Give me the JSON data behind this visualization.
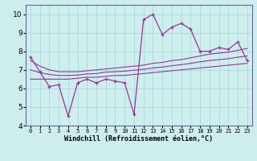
{
  "x": [
    0,
    1,
    2,
    3,
    4,
    5,
    6,
    7,
    8,
    9,
    10,
    11,
    12,
    13,
    14,
    15,
    16,
    17,
    18,
    19,
    20,
    21,
    22,
    23
  ],
  "y_main": [
    7.7,
    6.9,
    6.1,
    6.2,
    4.5,
    6.3,
    6.5,
    6.3,
    6.5,
    6.4,
    6.3,
    4.6,
    9.7,
    10.0,
    8.9,
    9.3,
    9.5,
    9.2,
    8.0,
    8.0,
    8.2,
    8.1,
    8.5,
    7.5
  ],
  "y_upper": [
    7.5,
    7.2,
    7.0,
    6.9,
    6.9,
    6.9,
    6.95,
    7.0,
    7.05,
    7.1,
    7.15,
    7.2,
    7.25,
    7.35,
    7.4,
    7.5,
    7.55,
    7.65,
    7.75,
    7.85,
    7.9,
    7.95,
    8.05,
    8.15
  ],
  "y_lower": [
    6.5,
    6.5,
    6.5,
    6.5,
    6.5,
    6.55,
    6.6,
    6.6,
    6.65,
    6.7,
    6.7,
    6.75,
    6.8,
    6.85,
    6.9,
    6.95,
    7.0,
    7.05,
    7.1,
    7.15,
    7.2,
    7.25,
    7.3,
    7.35
  ],
  "y_mid": [
    7.0,
    6.85,
    6.75,
    6.7,
    6.7,
    6.72,
    6.78,
    6.8,
    6.88,
    6.9,
    6.93,
    6.98,
    7.03,
    7.1,
    7.15,
    7.22,
    7.28,
    7.35,
    7.43,
    7.5,
    7.55,
    7.6,
    7.68,
    7.75
  ],
  "line_color": "#993399",
  "bg_color": "#ceeeed",
  "grid_color": "#aadddd",
  "xlabel": "Windchill (Refroidissement éolien,°C)",
  "ylim": [
    4.0,
    10.5
  ],
  "xlim": [
    -0.5,
    23.5
  ],
  "yticks": [
    4,
    5,
    6,
    7,
    8,
    9,
    10
  ],
  "xtick_labels": [
    "0",
    "1",
    "2",
    "3",
    "4",
    "5",
    "6",
    "7",
    "8",
    "9",
    "10",
    "11",
    "12",
    "13",
    "14",
    "15",
    "16",
    "17",
    "18",
    "19",
    "20",
    "21",
    "22",
    "23"
  ]
}
